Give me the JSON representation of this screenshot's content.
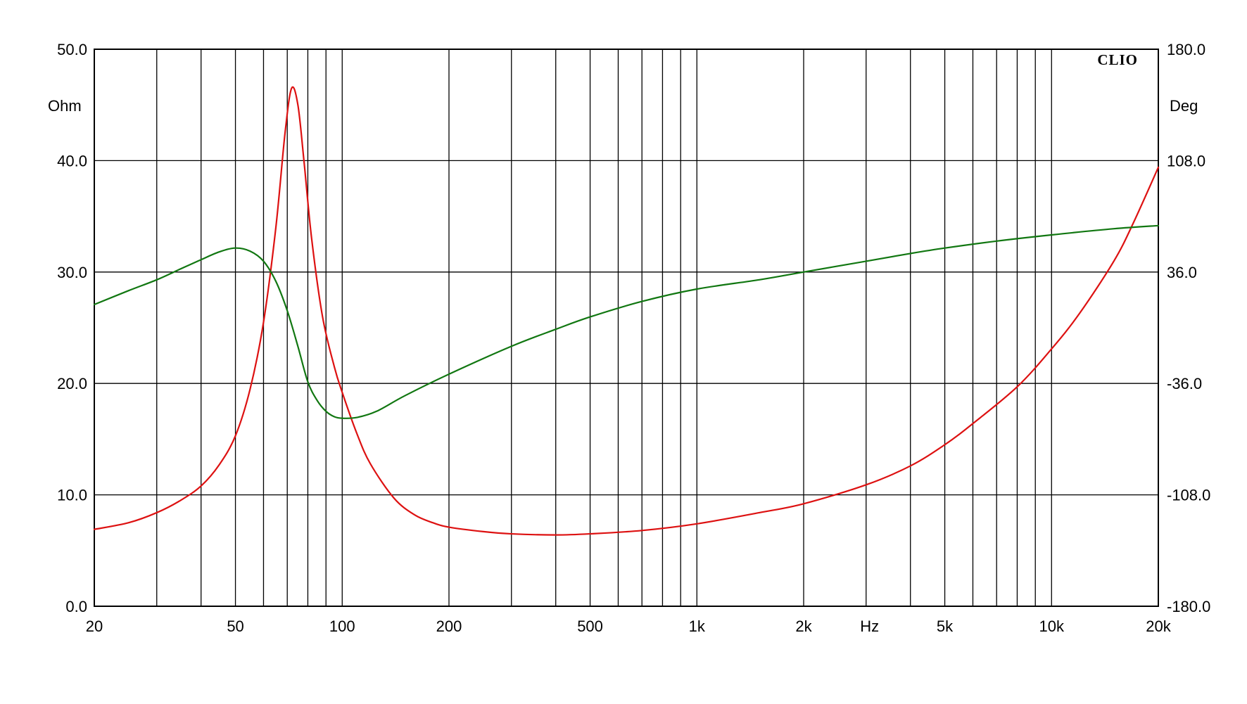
{
  "chart_data": {
    "type": "line",
    "brand": "CLIO",
    "xunit": "Hz",
    "yleft_unit": "Ohm",
    "yright_unit": "Deg",
    "x_scale": "log",
    "xlim": [
      20,
      20000
    ],
    "ylim_left": [
      0,
      50
    ],
    "ylim_right": [
      -180,
      180
    ],
    "grid": true,
    "x_ticks": [
      {
        "value": 20,
        "label": "20"
      },
      {
        "value": 50,
        "label": "50"
      },
      {
        "value": 100,
        "label": "100"
      },
      {
        "value": 200,
        "label": "200"
      },
      {
        "value": 500,
        "label": "500"
      },
      {
        "value": 1000,
        "label": "1k"
      },
      {
        "value": 2000,
        "label": "2k"
      },
      {
        "value": 5000,
        "label": "5k"
      },
      {
        "value": 10000,
        "label": "10k"
      },
      {
        "value": 20000,
        "label": "20k"
      }
    ],
    "x_unit_position": 3000,
    "x_minor_grid": [
      30,
      40,
      60,
      70,
      80,
      90,
      300,
      400,
      600,
      700,
      800,
      900,
      3000,
      4000,
      6000,
      7000,
      8000,
      9000
    ],
    "y_left_ticks": [
      {
        "value": 0,
        "label": "0.0"
      },
      {
        "value": 10,
        "label": "10.0"
      },
      {
        "value": 20,
        "label": "20.0"
      },
      {
        "value": 30,
        "label": "30.0"
      },
      {
        "value": 40,
        "label": "40.0"
      },
      {
        "value": 50,
        "label": "50.0"
      }
    ],
    "y_right_ticks": [
      {
        "value": -180,
        "label": "-180.0"
      },
      {
        "value": -108,
        "label": "-108.0"
      },
      {
        "value": -36,
        "label": "-36.0"
      },
      {
        "value": 36,
        "label": "36.0"
      },
      {
        "value": 108,
        "label": "108.0"
      },
      {
        "value": 180,
        "label": "180.0"
      }
    ],
    "series": [
      {
        "axis": "left",
        "color": "#dd1111",
        "points": [
          [
            20,
            6.9
          ],
          [
            25,
            7.5
          ],
          [
            30,
            8.4
          ],
          [
            35,
            9.5
          ],
          [
            40,
            10.8
          ],
          [
            45,
            12.7
          ],
          [
            50,
            15.3
          ],
          [
            55,
            19.5
          ],
          [
            60,
            25.5
          ],
          [
            65,
            34.0
          ],
          [
            69,
            42.5
          ],
          [
            72,
            46.5
          ],
          [
            75,
            45.0
          ],
          [
            78,
            40.0
          ],
          [
            82,
            33.0
          ],
          [
            88,
            26.0
          ],
          [
            95,
            21.5
          ],
          [
            100,
            19.2
          ],
          [
            110,
            15.5
          ],
          [
            120,
            12.8
          ],
          [
            140,
            9.7
          ],
          [
            160,
            8.2
          ],
          [
            180,
            7.5
          ],
          [
            200,
            7.1
          ],
          [
            250,
            6.7
          ],
          [
            300,
            6.5
          ],
          [
            400,
            6.4
          ],
          [
            500,
            6.5
          ],
          [
            700,
            6.8
          ],
          [
            1000,
            7.4
          ],
          [
            1500,
            8.4
          ],
          [
            2000,
            9.2
          ],
          [
            3000,
            10.9
          ],
          [
            4000,
            12.6
          ],
          [
            5000,
            14.5
          ],
          [
            6000,
            16.4
          ],
          [
            8000,
            19.7
          ],
          [
            10000,
            23.1
          ],
          [
            12000,
            26.3
          ],
          [
            15000,
            31.0
          ],
          [
            17000,
            34.4
          ],
          [
            20000,
            39.4
          ]
        ]
      },
      {
        "axis": "right",
        "color": "#117711",
        "points": [
          [
            20,
            15.0
          ],
          [
            25,
            24.0
          ],
          [
            30,
            31.0
          ],
          [
            35,
            38.0
          ],
          [
            40,
            44.0
          ],
          [
            45,
            49.0
          ],
          [
            50,
            51.5
          ],
          [
            55,
            49.5
          ],
          [
            60,
            43.0
          ],
          [
            65,
            30.0
          ],
          [
            70,
            11.0
          ],
          [
            75,
            -12.0
          ],
          [
            80,
            -35.0
          ],
          [
            85,
            -47.0
          ],
          [
            90,
            -54.0
          ],
          [
            95,
            -57.5
          ],
          [
            100,
            -58.5
          ],
          [
            110,
            -58.0
          ],
          [
            125,
            -54.0
          ],
          [
            150,
            -44.0
          ],
          [
            200,
            -30.0
          ],
          [
            300,
            -12.0
          ],
          [
            400,
            -1.0
          ],
          [
            500,
            7.0
          ],
          [
            700,
            17.0
          ],
          [
            1000,
            25.0
          ],
          [
            1500,
            31.0
          ],
          [
            2000,
            36.0
          ],
          [
            3000,
            43.0
          ],
          [
            4000,
            48.0
          ],
          [
            5000,
            51.5
          ],
          [
            7000,
            56.0
          ],
          [
            10000,
            60.0
          ],
          [
            15000,
            64.0
          ],
          [
            20000,
            66.0
          ]
        ]
      }
    ]
  }
}
